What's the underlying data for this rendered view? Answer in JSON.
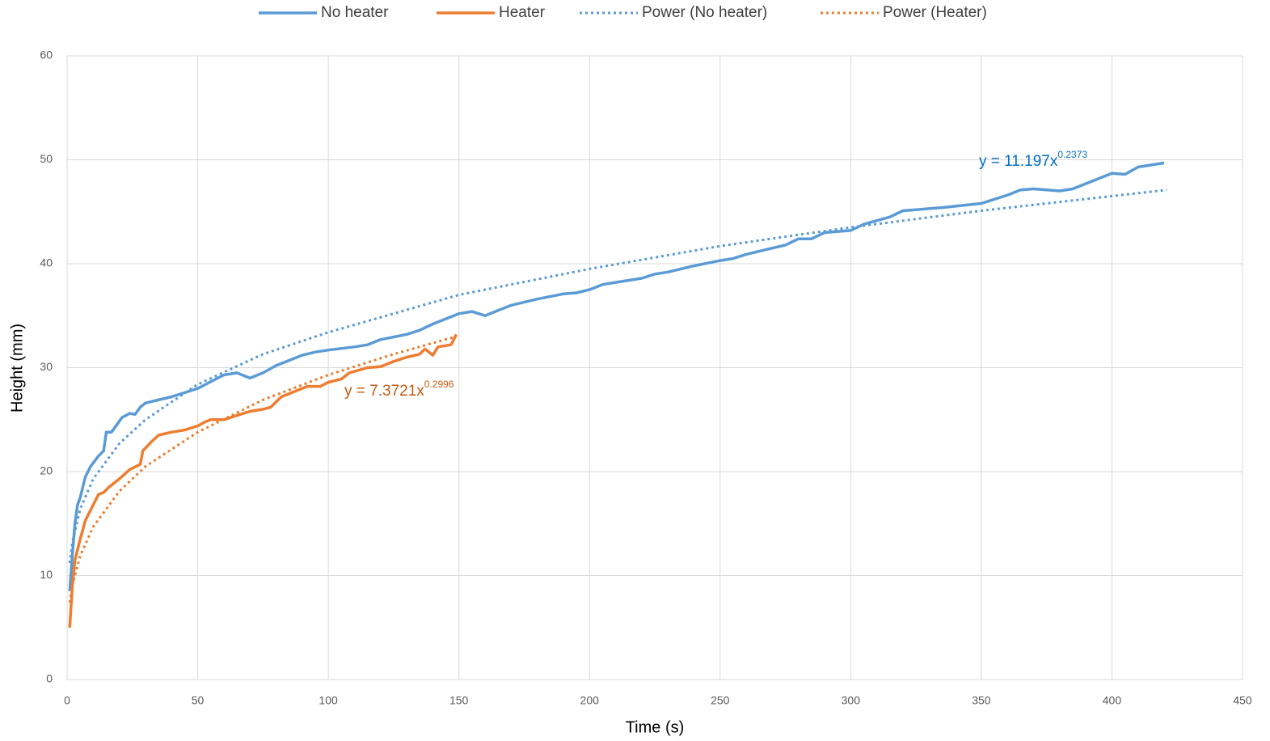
{
  "chart_data": {
    "type": "line",
    "x_label": "Time (s)",
    "y_label": "Height (mm)",
    "xlim": [
      0,
      450
    ],
    "xticks": [
      0,
      50,
      100,
      150,
      200,
      250,
      300,
      350,
      400,
      450
    ],
    "ylim": [
      0,
      60
    ],
    "yticks": [
      0,
      10,
      20,
      30,
      40,
      50,
      60
    ],
    "grid": true,
    "legend": "top",
    "series": [
      {
        "name": "No heater",
        "color": "#5b9bd5",
        "dash": false,
        "x": [
          1,
          2,
          3,
          4,
          5,
          7,
          9,
          12,
          14,
          15,
          17,
          19,
          21,
          24,
          26,
          28,
          30,
          40,
          50,
          60,
          65,
          70,
          75,
          80,
          90,
          95,
          100,
          110,
          115,
          120,
          130,
          135,
          140,
          150,
          155,
          160,
          165,
          170,
          180,
          190,
          195,
          200,
          205,
          210,
          220,
          225,
          230,
          240,
          250,
          255,
          260,
          270,
          275,
          280,
          285,
          290,
          300,
          305,
          315,
          320,
          325,
          335,
          350,
          360,
          365,
          370,
          380,
          385,
          395,
          400,
          405,
          410,
          420
        ],
        "values": [
          8.5,
          12,
          15,
          16.8,
          17.5,
          19.5,
          20.5,
          21.5,
          22,
          23.8,
          23.8,
          24.5,
          25.2,
          25.6,
          25.5,
          26.2,
          26.6,
          27.2,
          28,
          29.3,
          29.5,
          29,
          29.5,
          30.2,
          31.2,
          31.5,
          31.7,
          32,
          32.2,
          32.7,
          33.2,
          33.6,
          34.2,
          35.2,
          35.4,
          35,
          35.5,
          36,
          36.6,
          37.1,
          37.2,
          37.5,
          38,
          38.2,
          38.6,
          39,
          39.2,
          39.8,
          40.3,
          40.5,
          40.9,
          41.5,
          41.8,
          42.4,
          42.4,
          43,
          43.2,
          43.8,
          44.5,
          45.1,
          45.2,
          45.4,
          45.8,
          46.6,
          47.1,
          47.2,
          47,
          47.2,
          48.2,
          48.7,
          48.6,
          49.3,
          49.7
        ]
      },
      {
        "name": "Heater",
        "color": "#ed7d31",
        "dash": false,
        "x": [
          1,
          2,
          3,
          5,
          7,
          9,
          12,
          14,
          16,
          20,
          24,
          28,
          29,
          32,
          35,
          40,
          45,
          50,
          53,
          55,
          60,
          65,
          70,
          75,
          78,
          82,
          88,
          92,
          97,
          100,
          105,
          108,
          115,
          120,
          125,
          130,
          135,
          137,
          140,
          142,
          147,
          149
        ],
        "values": [
          5,
          9,
          11.5,
          13.5,
          15.3,
          16.3,
          17.8,
          18,
          18.5,
          19.3,
          20.2,
          20.7,
          22,
          22.8,
          23.5,
          23.8,
          24,
          24.4,
          24.8,
          25,
          25,
          25.4,
          25.8,
          26,
          26.2,
          27.2,
          27.8,
          28.2,
          28.2,
          28.6,
          28.9,
          29.5,
          30,
          30.1,
          30.6,
          31,
          31.3,
          31.8,
          31.2,
          32,
          32.2,
          33.2
        ]
      },
      {
        "name": "Power (No heater)",
        "color": "#5b9bd5",
        "dash": true,
        "x": [
          1,
          2,
          5,
          10,
          20,
          30,
          50,
          75,
          100,
          150,
          200,
          250,
          300,
          350,
          421
        ],
        "values": [
          11.2,
          13.2,
          16.4,
          19.3,
          22.7,
          25,
          28.4,
          31.3,
          33.4,
          37,
          39.5,
          41.7,
          43.5,
          45.1,
          47.1
        ]
      },
      {
        "name": "Power (Heater)",
        "color": "#ed7d31",
        "dash": true,
        "x": [
          1,
          2,
          5,
          10,
          20,
          30,
          50,
          75,
          100,
          125,
          149
        ],
        "values": [
          7.4,
          9.1,
          11.9,
          14.7,
          18.1,
          20.5,
          23.8,
          26.9,
          29.3,
          31.3,
          33
        ]
      }
    ],
    "annotations": [
      {
        "text": "y = 11.197x",
        "sup": "0.2373",
        "color": "#0070c0"
      },
      {
        "text": "y = 7.3721x",
        "sup": "0.2996",
        "color": "#c55a11"
      }
    ]
  }
}
